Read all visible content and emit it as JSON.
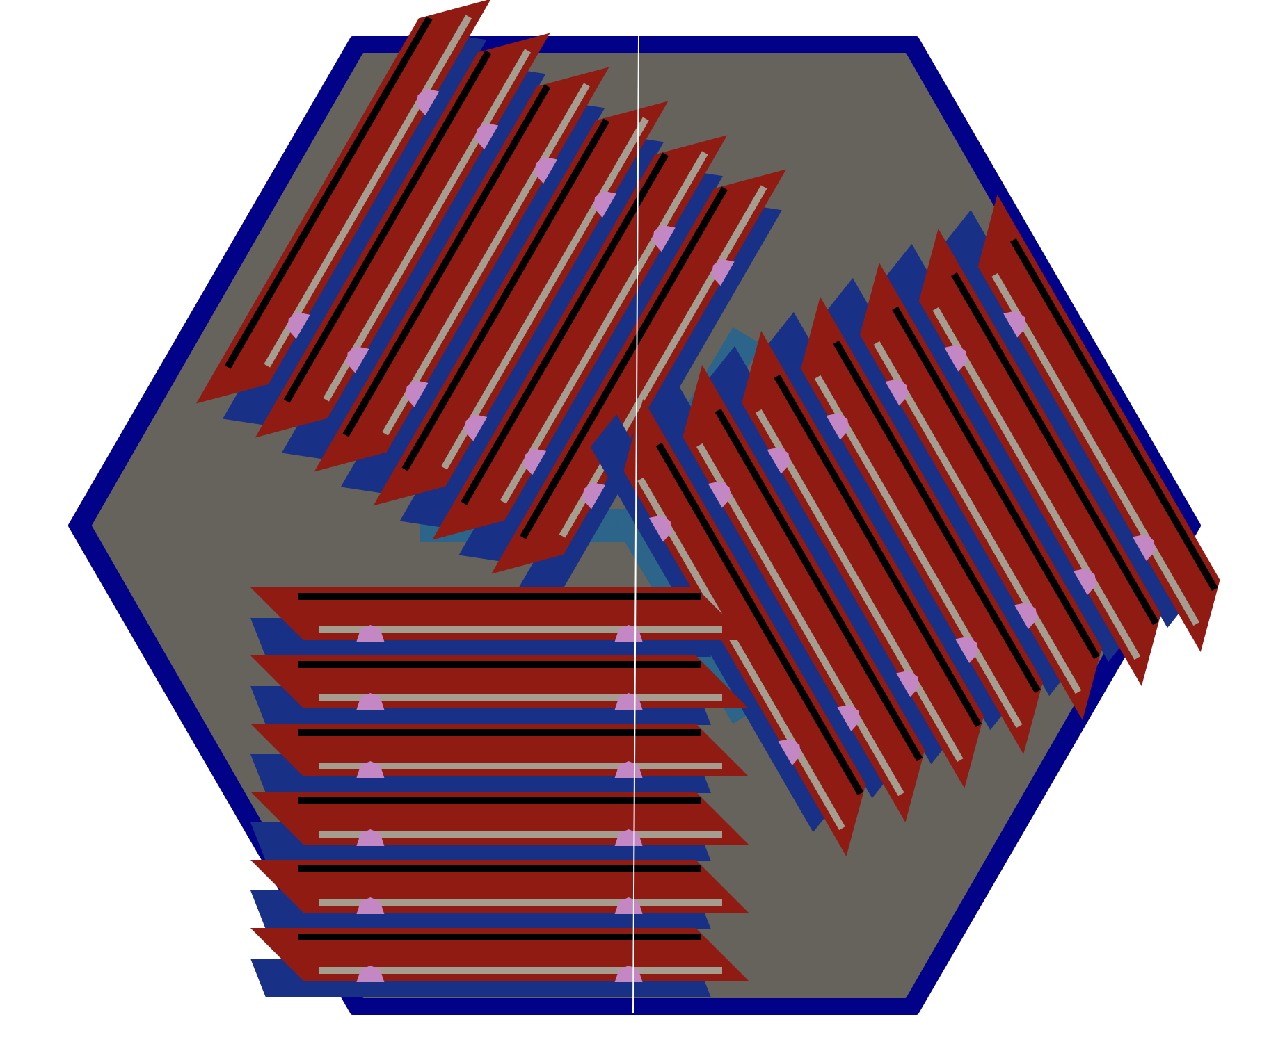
{
  "figure": {
    "description_hidden": "",
    "colors": {
      "background": "#ffffff",
      "outer_rim": "#020288",
      "base": "#65635c",
      "channel": "#2d6489",
      "shadow_strip": "#193087",
      "fin": "#8f1b13",
      "bar_light": "#a59d90",
      "bar_dark": "#000000",
      "bump": "#c388c4",
      "section_line": "#ffffff"
    },
    "sectors": [
      {
        "name": "upper-left",
        "direction_deg": -60,
        "fin_count": 6
      },
      {
        "name": "right",
        "direction_deg": 60,
        "fin_count": 7
      },
      {
        "name": "lower-left",
        "direction_deg": 0,
        "fin_count": 6
      }
    ],
    "channel": {
      "shape": "Y",
      "arms": 3
    },
    "section_line": true
  }
}
